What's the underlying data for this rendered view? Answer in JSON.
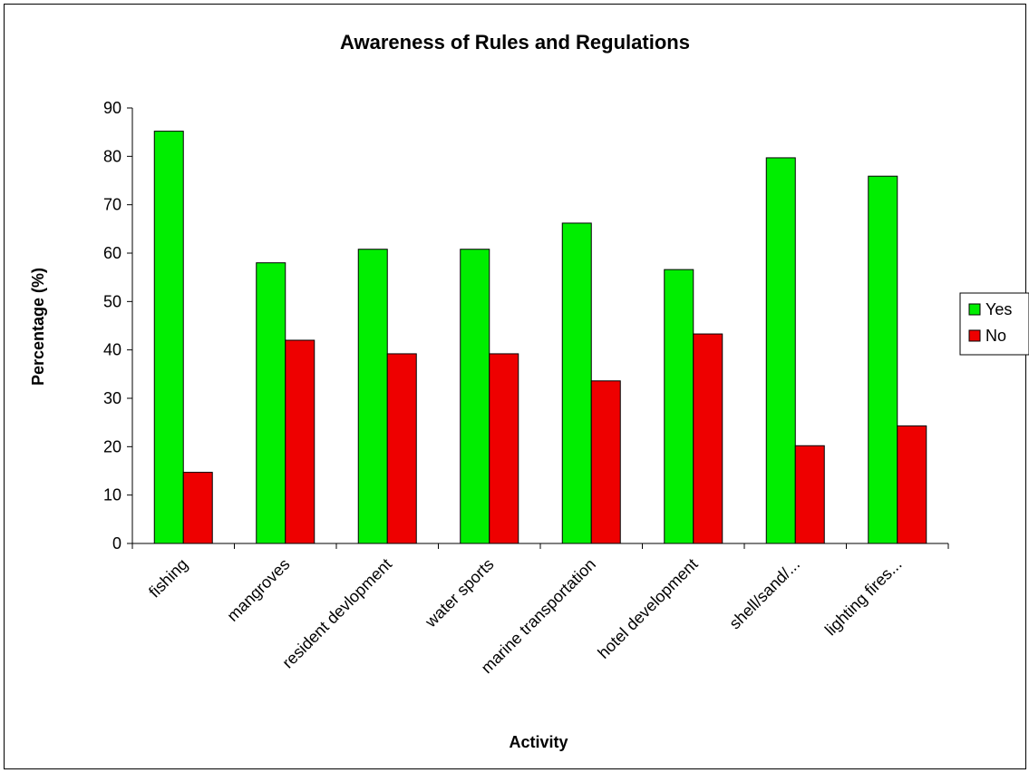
{
  "chart_data": {
    "type": "bar",
    "title": "Awareness of Rules and Regulations",
    "xlabel": "Activity",
    "ylabel": "Percentage (%)",
    "ylim": [
      0,
      90
    ],
    "yticks": [
      0,
      10,
      20,
      30,
      40,
      50,
      60,
      70,
      80,
      90
    ],
    "categories": [
      "fishing",
      "mangroves",
      "resident devlopment",
      "water sports",
      "marine transportation",
      "hotel development",
      "shell/sand/...",
      "lighting fires..."
    ],
    "series": [
      {
        "name": "Yes",
        "color": "#00ee00",
        "values": [
          85.2,
          58.0,
          60.8,
          60.8,
          66.2,
          56.6,
          79.7,
          75.9
        ]
      },
      {
        "name": "No",
        "color": "#ee0000",
        "values": [
          14.7,
          42.0,
          39.2,
          39.2,
          33.6,
          43.3,
          20.2,
          24.3
        ]
      }
    ],
    "grid": false,
    "legend_position": "right"
  }
}
